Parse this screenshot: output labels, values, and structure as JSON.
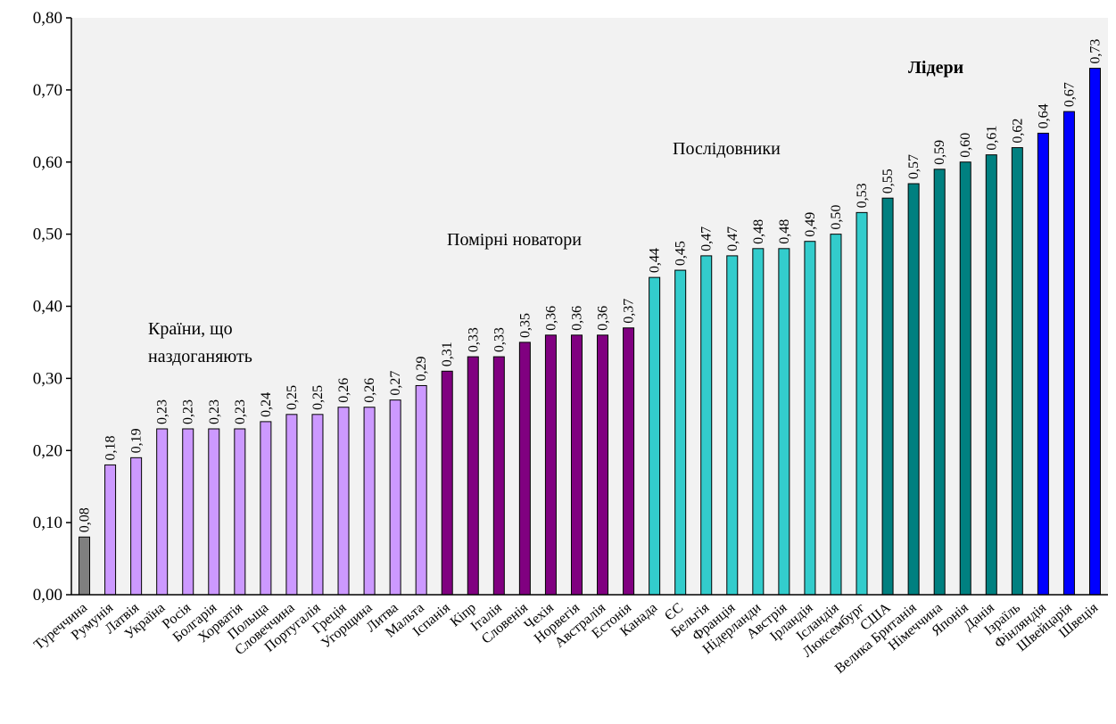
{
  "chart_data": {
    "type": "bar",
    "categories": [
      "Туреччина",
      "Румунія",
      "Латвія",
      "Україна",
      "Росія",
      "Болгарія",
      "Хорватія",
      "Польща",
      "Словеччина",
      "Португалія",
      "Греція",
      "Угорщина",
      "Литва",
      "Мальта",
      "Іспанія",
      "Кіпр",
      "Італія",
      "Словенія",
      "Чехія",
      "Норвегія",
      "Австралія",
      "Естонія",
      "Канада",
      "ЄС",
      "Бельгія",
      "Франція",
      "Нідерланди",
      "Австрія",
      "Ірландія",
      "Ісландія",
      "Люксембург",
      "США",
      "Велика Британія",
      "Німеччина",
      "Японія",
      "Данія",
      "Ізраїль",
      "Фінляндія",
      "Швейцарія",
      "Швеція"
    ],
    "values": [
      0.08,
      0.18,
      0.19,
      0.23,
      0.23,
      0.23,
      0.23,
      0.24,
      0.25,
      0.25,
      0.26,
      0.26,
      0.27,
      0.29,
      0.31,
      0.33,
      0.33,
      0.35,
      0.36,
      0.36,
      0.36,
      0.37,
      0.44,
      0.45,
      0.47,
      0.47,
      0.48,
      0.48,
      0.49,
      0.5,
      0.53,
      0.55,
      0.57,
      0.59,
      0.6,
      0.61,
      0.62,
      0.64,
      0.67,
      0.73
    ],
    "value_labels": [
      "0,08",
      "0,18",
      "0,19",
      "0,23",
      "0,23",
      "0,23",
      "0,23",
      "0,24",
      "0,25",
      "0,25",
      "0,26",
      "0,26",
      "0,27",
      "0,29",
      "0,31",
      "0,33",
      "0,33",
      "0,35",
      "0,36",
      "0,36",
      "0,36",
      "0,37",
      "0,44",
      "0,45",
      "0,47",
      "0,47",
      "0,48",
      "0,48",
      "0,49",
      "0,50",
      "0,53",
      "0,55",
      "0,57",
      "0,59",
      "0,60",
      "0,61",
      "0,62",
      "0,64",
      "0,67",
      "0,73"
    ],
    "bar_colors": [
      "#7f7f7f",
      "#cc99ff",
      "#cc99ff",
      "#cc99ff",
      "#cc99ff",
      "#cc99ff",
      "#cc99ff",
      "#cc99ff",
      "#cc99ff",
      "#cc99ff",
      "#cc99ff",
      "#cc99ff",
      "#cc99ff",
      "#cc99ff",
      "#800080",
      "#800080",
      "#800080",
      "#800080",
      "#800080",
      "#800080",
      "#800080",
      "#800080",
      "#33cccc",
      "#33cccc",
      "#33cccc",
      "#33cccc",
      "#33cccc",
      "#33cccc",
      "#33cccc",
      "#33cccc",
      "#33cccc",
      "#008080",
      "#008080",
      "#008080",
      "#008080",
      "#008080",
      "#008080",
      "#0000ff",
      "#0000ff",
      "#0000ff"
    ],
    "ylim": [
      0,
      0.8
    ],
    "yticks": [
      0,
      0.1,
      0.2,
      0.3,
      0.4,
      0.5,
      0.6,
      0.7,
      0.8
    ],
    "ytick_labels": [
      "0,00",
      "0,10",
      "0,20",
      "0,30",
      "0,40",
      "0,50",
      "0,60",
      "0,70",
      "0,80"
    ],
    "title": "",
    "xlabel": "",
    "ylabel": "",
    "grid": false,
    "plot_background": "#f2f2f2",
    "annotations": [
      {
        "lines": [
          "Країни, що",
          "наздоганяють"
        ],
        "bold": false
      },
      {
        "lines": [
          "Помірні новатори"
        ],
        "bold": false
      },
      {
        "lines": [
          "Послідовники"
        ],
        "bold": false
      },
      {
        "lines": [
          "Лідери"
        ],
        "bold": true
      }
    ]
  }
}
